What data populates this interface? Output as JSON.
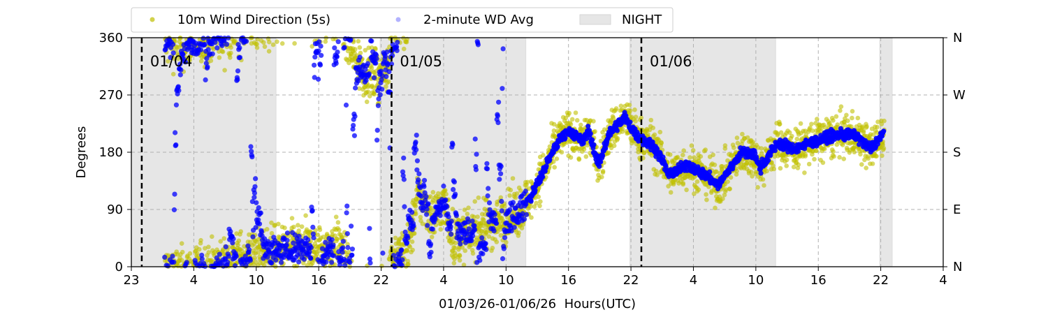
{
  "chart_data": {
    "type": "scatter",
    "title": "",
    "xlabel": "01/03/26-01/06/26  Hours(UTC)",
    "ylabel": "Degrees",
    "x_units": "hours since 01/03 23:00 UTC",
    "xlim": [
      0,
      78
    ],
    "ylim": [
      0,
      360
    ],
    "x_ticks": [
      0,
      6,
      12,
      18,
      24,
      30,
      36,
      42,
      48,
      54,
      60,
      66,
      72,
      78
    ],
    "x_tick_labels": [
      "23",
      "4",
      "10",
      "16",
      "22",
      "4",
      "10",
      "16",
      "22",
      "4",
      "10",
      "16",
      "22",
      "4"
    ],
    "y_ticks": [
      0,
      90,
      180,
      270,
      360
    ],
    "y_tick_labels": [
      "0",
      "90",
      "180",
      "270",
      "360"
    ],
    "y2_tick_labels": [
      "N",
      "E",
      "S",
      "W",
      "N"
    ],
    "grid": true,
    "day_markers": [
      {
        "x": 1,
        "label": "01/04"
      },
      {
        "x": 25,
        "label": "01/05"
      },
      {
        "x": 49,
        "label": "01/06"
      }
    ],
    "night_spans": [
      [
        0,
        13.9
      ],
      [
        23.9,
        37.9
      ],
      [
        47.9,
        61.9
      ],
      [
        71.9,
        73.1
      ]
    ],
    "legend": {
      "placement": "top-center-outside",
      "entries": [
        "10m Wind Direction (5s)",
        "2-minute WD Avg",
        "NIGHT"
      ]
    },
    "series": [
      {
        "name": "10m Wind Direction (5s)",
        "color": "#bfbf00",
        "spread_deg_early": 35,
        "spread_deg_late": 30
      },
      {
        "name": "2-minute WD Avg",
        "color": "#0000ff",
        "spread_deg_early": 22,
        "spread_deg_late": 8
      }
    ],
    "mean_direction_trend": [
      [
        3.2,
        -5
      ],
      [
        5,
        -8
      ],
      [
        7,
        -3
      ],
      [
        9,
        5
      ],
      [
        10.4,
        15
      ],
      [
        12,
        20
      ],
      [
        14,
        25
      ],
      [
        16,
        30
      ],
      [
        18,
        25
      ],
      [
        20,
        35
      ],
      [
        21.5,
        -40
      ],
      [
        23,
        -60
      ],
      [
        24.5,
        -50
      ],
      [
        25,
        15
      ],
      [
        26.5,
        20
      ],
      [
        27.5,
        110
      ],
      [
        29,
        80
      ],
      [
        30,
        100
      ],
      [
        31,
        40
      ],
      [
        33,
        60
      ],
      [
        35,
        70
      ],
      [
        37,
        85
      ],
      [
        38.4,
        110
      ],
      [
        39.6,
        150
      ],
      [
        41.1,
        200
      ],
      [
        42.1,
        215
      ],
      [
        43.4,
        195
      ],
      [
        43.9,
        215
      ],
      [
        44.9,
        160
      ],
      [
        45.9,
        210
      ],
      [
        47.4,
        235
      ],
      [
        48.6,
        205
      ],
      [
        50.2,
        190
      ],
      [
        51.7,
        145
      ],
      [
        53.5,
        160
      ],
      [
        55.5,
        140
      ],
      [
        56.4,
        128
      ],
      [
        58.6,
        180
      ],
      [
        59.9,
        175
      ],
      [
        60.4,
        155
      ],
      [
        62.1,
        195
      ],
      [
        63.6,
        185
      ],
      [
        66.2,
        200
      ],
      [
        67.7,
        207
      ],
      [
        69.5,
        207
      ],
      [
        71,
        185
      ],
      [
        72.3,
        210
      ]
    ],
    "colors": {
      "night": "#e6e6e6",
      "grid": "#b0b0b0"
    }
  }
}
